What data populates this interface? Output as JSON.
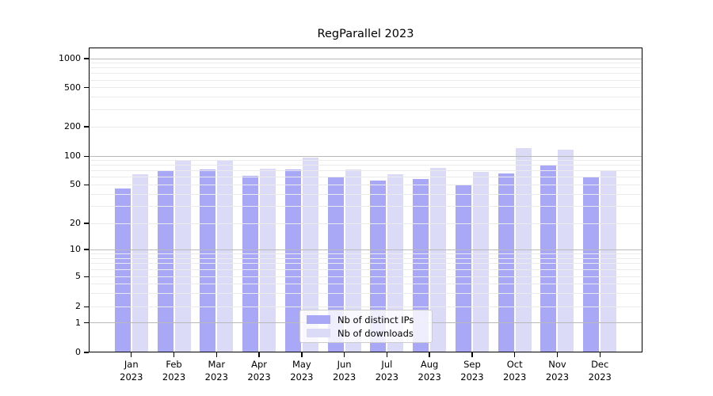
{
  "chart_data": {
    "type": "bar",
    "title": "RegParallel 2023",
    "categories": [
      "Jan 2023",
      "Feb 2023",
      "Mar 2023",
      "Apr 2023",
      "May 2023",
      "Jun 2023",
      "Jul 2023",
      "Aug 2023",
      "Sep 2023",
      "Oct 2023",
      "Nov 2023",
      "Dec 2023"
    ],
    "series": [
      {
        "name": "Nb of distinct IPs",
        "color": "#a8a8f6",
        "values": [
          46,
          70,
          72,
          62,
          72,
          60,
          55,
          58,
          50,
          66,
          81,
          60
        ]
      },
      {
        "name": "Nb of downloads",
        "color": "#dbdbf8",
        "values": [
          64,
          89,
          89,
          74,
          97,
          73,
          65,
          75,
          68,
          121,
          116,
          70
        ]
      }
    ],
    "xlabel": "",
    "ylabel": "",
    "yscale": "symlog",
    "y_ticks": [
      0,
      1,
      2,
      5,
      10,
      20,
      50,
      100,
      200,
      500,
      1000
    ],
    "ylim": [
      0,
      1320
    ],
    "grid": "on",
    "legend_position": "lower center"
  },
  "colors": {
    "major_grid": "#b9b9b9",
    "minor_grid": "#ebebeb",
    "spine": "#000000",
    "background": "#ffffff"
  }
}
